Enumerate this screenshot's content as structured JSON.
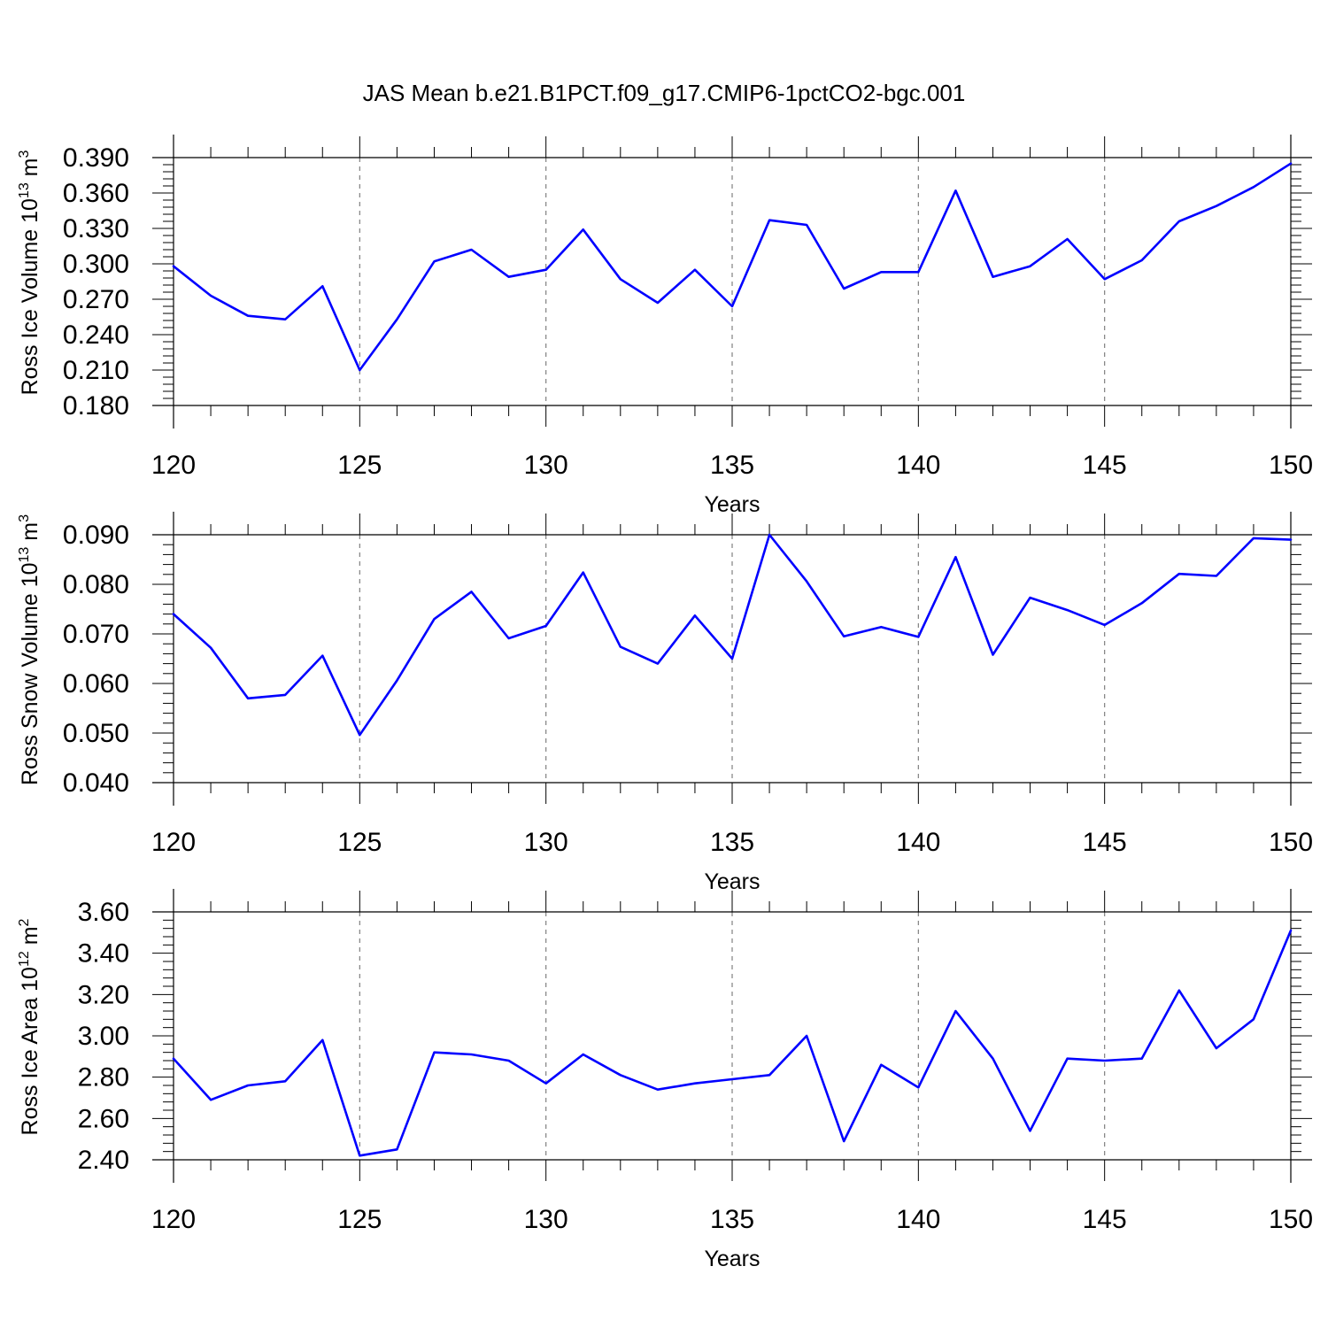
{
  "title": "JAS Mean b.e21.B1PCT.f09_g17.CMIP6-1pctCO2-bgc.001",
  "line_color": "#0000ff",
  "chart_data": [
    {
      "type": "line",
      "name": "Ross Ice Volume",
      "ylabel_main": "Ross Ice Volume 10",
      "ylabel_exp": "13",
      "ylabel_unit": "m",
      "ylabel_unit_exp": "3",
      "xlabel": "Years",
      "xlim": [
        120,
        150
      ],
      "ylim": [
        0.18,
        0.39
      ],
      "xticks": [
        "120",
        "125",
        "130",
        "135",
        "140",
        "145",
        "150"
      ],
      "yticks": [
        "0.180",
        "0.210",
        "0.240",
        "0.270",
        "0.300",
        "0.330",
        "0.360",
        "0.390"
      ],
      "x": [
        120,
        121,
        122,
        123,
        124,
        125,
        126,
        127,
        128,
        129,
        130,
        131,
        132,
        133,
        134,
        135,
        136,
        137,
        138,
        139,
        140,
        141,
        142,
        143,
        144,
        145,
        146,
        147,
        148,
        149,
        150
      ],
      "values": [
        0.298,
        0.273,
        0.256,
        0.253,
        0.281,
        0.21,
        0.253,
        0.302,
        0.312,
        0.289,
        0.295,
        0.329,
        0.287,
        0.267,
        0.295,
        0.264,
        0.337,
        0.333,
        0.279,
        0.293,
        0.293,
        0.362,
        0.289,
        0.298,
        0.321,
        0.287,
        0.303,
        0.336,
        0.349,
        0.365,
        0.385
      ]
    },
    {
      "type": "line",
      "name": "Ross Snow Volume",
      "ylabel_main": "Ross Snow Volume 10",
      "ylabel_exp": "13",
      "ylabel_unit": "m",
      "ylabel_unit_exp": "3",
      "xlabel": "Years",
      "xlim": [
        120,
        150
      ],
      "ylim": [
        0.04,
        0.09
      ],
      "xticks": [
        "120",
        "125",
        "130",
        "135",
        "140",
        "145",
        "150"
      ],
      "yticks": [
        "0.040",
        "0.050",
        "0.060",
        "0.070",
        "0.080",
        "0.090"
      ],
      "x": [
        120,
        121,
        122,
        123,
        124,
        125,
        126,
        127,
        128,
        129,
        130,
        131,
        132,
        133,
        134,
        135,
        136,
        137,
        138,
        139,
        140,
        141,
        142,
        143,
        144,
        145,
        146,
        147,
        148,
        149,
        150
      ],
      "values": [
        0.074,
        0.0672,
        0.057,
        0.0577,
        0.0656,
        0.0496,
        0.0606,
        0.073,
        0.0785,
        0.0691,
        0.0716,
        0.0824,
        0.0674,
        0.064,
        0.0737,
        0.065,
        0.09,
        0.0806,
        0.0695,
        0.0714,
        0.0694,
        0.0855,
        0.0658,
        0.0773,
        0.0748,
        0.0718,
        0.0762,
        0.0821,
        0.0817,
        0.0893,
        0.089
      ]
    },
    {
      "type": "line",
      "name": "Ross Ice Area",
      "ylabel_main": "Ross Ice Area 10",
      "ylabel_exp": "12",
      "ylabel_unit": "m",
      "ylabel_unit_exp": "2",
      "xlabel": "Years",
      "xlim": [
        120,
        150
      ],
      "ylim": [
        2.4,
        3.6
      ],
      "xticks": [
        "120",
        "125",
        "130",
        "135",
        "140",
        "145",
        "150"
      ],
      "yticks": [
        "2.40",
        "2.60",
        "2.80",
        "3.00",
        "3.20",
        "3.40",
        "3.60"
      ],
      "x": [
        120,
        121,
        122,
        123,
        124,
        125,
        126,
        127,
        128,
        129,
        130,
        131,
        132,
        133,
        134,
        135,
        136,
        137,
        138,
        139,
        140,
        141,
        142,
        143,
        144,
        145,
        146,
        147,
        148,
        149,
        150
      ],
      "values": [
        2.89,
        2.69,
        2.76,
        2.78,
        2.98,
        2.42,
        2.45,
        2.92,
        2.91,
        2.88,
        2.77,
        2.91,
        2.81,
        2.74,
        2.77,
        2.79,
        2.81,
        3.0,
        2.49,
        2.86,
        2.75,
        3.12,
        2.89,
        2.54,
        2.89,
        2.88,
        2.89,
        3.22,
        2.94,
        3.08,
        3.51
      ]
    }
  ]
}
